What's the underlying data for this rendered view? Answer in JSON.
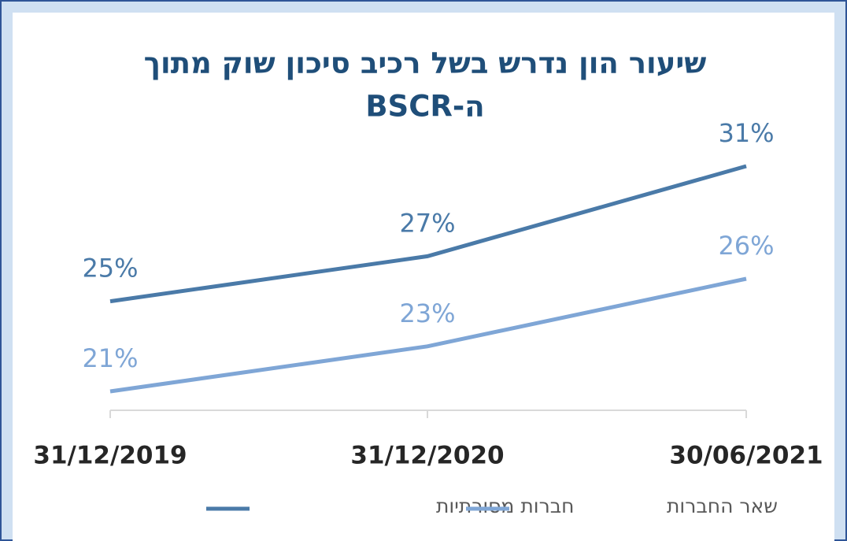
{
  "chart_data": {
    "type": "line",
    "title": [
      "שיעור הון נדרש בשל רכיב סיכון שוק מתוך",
      "ה-BSCR"
    ],
    "categories": [
      "31/12/2019",
      "31/12/2020",
      "30/06/2021"
    ],
    "series": [
      {
        "name": "חברות מסורתיות",
        "color": "#4a7aa8",
        "values": [
          25,
          27,
          31
        ],
        "value_labels": [
          "25%",
          "27%",
          "31%"
        ]
      },
      {
        "name": "שאר החברות",
        "color": "#7fa6d6",
        "values": [
          21,
          23,
          26
        ],
        "value_labels": [
          "21%",
          "23%",
          "26%"
        ]
      }
    ],
    "legend": "bottom",
    "grid": false
  }
}
